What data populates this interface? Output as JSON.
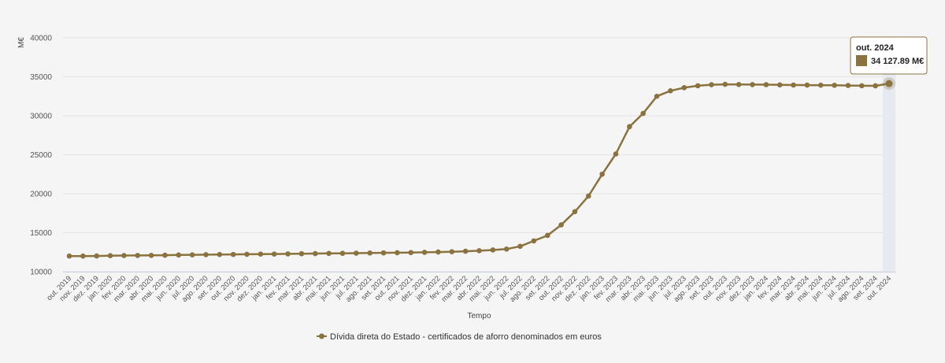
{
  "chart_data": {
    "type": "line",
    "ylabel": "M€",
    "xlabel": "Tempo",
    "ylim": [
      10000,
      40000
    ],
    "yticks": [
      "10000",
      "15000",
      "20000",
      "25000",
      "30000",
      "35000",
      "40000"
    ],
    "grid": true,
    "legend_position": "bottom-center",
    "categories": [
      "out. 2019",
      "nov. 2019",
      "dez. 2019",
      "jan. 2020",
      "fev. 2020",
      "mar. 2020",
      "abr. 2020",
      "mai. 2020",
      "jun. 2020",
      "jul. 2020",
      "ago. 2020",
      "set. 2020",
      "out. 2020",
      "nov. 2020",
      "dez. 2020",
      "jan. 2021",
      "fev. 2021",
      "mar. 2021",
      "abr. 2021",
      "mai. 2021",
      "jun. 2021",
      "jul. 2021",
      "ago. 2021",
      "set. 2021",
      "out. 2021",
      "nov. 2021",
      "dez. 2021",
      "jan. 2022",
      "fev. 2022",
      "mar. 2022",
      "abr. 2022",
      "mai. 2022",
      "jun. 2022",
      "jul. 2022",
      "ago. 2022",
      "set. 2022",
      "out. 2022",
      "nov. 2022",
      "dez. 2022",
      "jan. 2023",
      "fev. 2023",
      "mar. 2023",
      "abr. 2023",
      "mai. 2023",
      "jun. 2023",
      "jul. 2023",
      "ago. 2023",
      "set. 2023",
      "out. 2023",
      "nov. 2023",
      "dez. 2023",
      "jan. 2024",
      "fev. 2024",
      "mar. 2024",
      "abr. 2024",
      "mai. 2024",
      "jun. 2024",
      "jul. 2024",
      "ago. 2024",
      "set. 2024",
      "out. 2024"
    ],
    "series": [
      {
        "name": "Dívida direta do Estado - certificados de aforro denominados em euros",
        "color": "#8b7340",
        "values": [
          12000,
          12000,
          12010,
          12050,
          12070,
          12080,
          12090,
          12110,
          12140,
          12160,
          12180,
          12200,
          12210,
          12230,
          12250,
          12260,
          12280,
          12300,
          12320,
          12340,
          12350,
          12370,
          12390,
          12410,
          12430,
          12450,
          12480,
          12520,
          12560,
          12620,
          12690,
          12780,
          12900,
          13250,
          13950,
          14650,
          16000,
          17700,
          19700,
          22500,
          25100,
          28600,
          30300,
          32500,
          33200,
          33600,
          33850,
          33980,
          34030,
          34010,
          34000,
          33990,
          33960,
          33940,
          33930,
          33920,
          33910,
          33880,
          33850,
          33840,
          34127.89
        ]
      }
    ]
  },
  "tooltip": {
    "title": "out. 2024",
    "value": "34 127.89 M€"
  }
}
